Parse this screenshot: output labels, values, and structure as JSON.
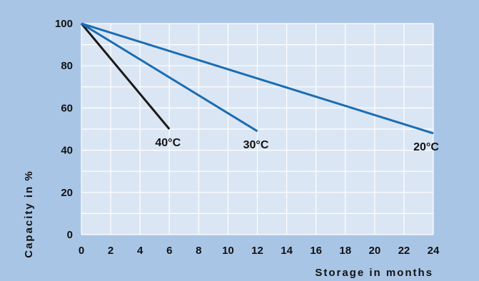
{
  "chart_data": {
    "type": "line",
    "title": "",
    "xlabel": "Storage in months",
    "ylabel": "Capacity in %",
    "xlim": [
      0,
      24
    ],
    "ylim": [
      0,
      100
    ],
    "xticks": [
      "0",
      "2",
      "4",
      "6",
      "8",
      "10",
      "12",
      "14",
      "16",
      "18",
      "20",
      "22",
      "24"
    ],
    "yticks": [
      "0",
      "20",
      "40",
      "60",
      "80",
      "100"
    ],
    "grid": true,
    "series": [
      {
        "name": "40°C",
        "color": "#1a1a1a",
        "points": [
          [
            0,
            100
          ],
          [
            6,
            50
          ]
        ]
      },
      {
        "name": "30°C",
        "color": "#1a6db4",
        "points": [
          [
            0,
            100
          ],
          [
            12,
            49
          ]
        ]
      },
      {
        "name": "20°C",
        "color": "#1a6db4",
        "points": [
          [
            0,
            100
          ],
          [
            24,
            48
          ]
        ]
      }
    ],
    "colors": {
      "background": "#a9c5e6",
      "plot_background": "#dbe6f4",
      "grid": "#ffffff"
    }
  }
}
